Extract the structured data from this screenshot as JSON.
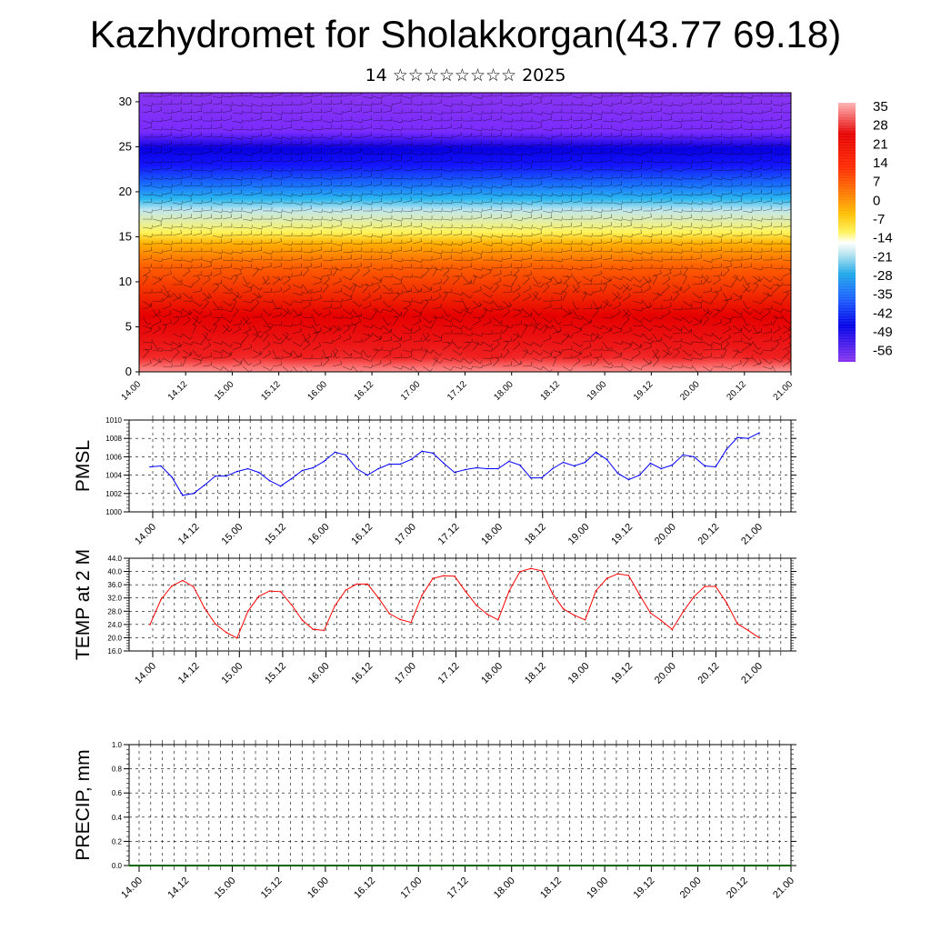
{
  "title": "Kazhydromet for Sholakkorgan(43.77 69.18)",
  "subtitle": "14 ☆☆☆☆☆☆☆☆ 2025",
  "colorbar": {
    "labels": [
      "35",
      "28",
      "21",
      "14",
      "7",
      "0",
      "-7",
      "-14",
      "-21",
      "-28",
      "-35",
      "-42",
      "-49",
      "-56"
    ]
  },
  "chart_data": [
    {
      "type": "heatmap",
      "title": "",
      "xlabel": "",
      "ylabel": "",
      "x_ticks": [
        "14.00",
        "14.12",
        "15.00",
        "15.12",
        "16.00",
        "16.12",
        "17.00",
        "17.12",
        "18.00",
        "18.12",
        "19.00",
        "19.12",
        "20.00",
        "20.12",
        "21.00"
      ],
      "y_ticks": [
        "0",
        "5",
        "10",
        "15",
        "20",
        "25",
        "30"
      ],
      "ylim": [
        0,
        31
      ],
      "colorbar_range": [
        -56,
        35
      ],
      "overlay": "wind barbs"
    },
    {
      "type": "line",
      "ylabel": "PMSL",
      "ylim": [
        1000,
        1010
      ],
      "y_ticks": [
        "1000",
        "1002",
        "1004",
        "1006",
        "1008",
        "1010"
      ],
      "x_ticks": [
        "14.00",
        "14.12",
        "15.00",
        "15.12",
        "16.00",
        "16.12",
        "17.00",
        "17.12",
        "18.00",
        "18.12",
        "19.00",
        "19.12",
        "20.00",
        "20.12",
        "21.00"
      ],
      "grid": true,
      "color": "#0000ff",
      "values": [
        1004.9,
        1005.0,
        1003.8,
        1001.8,
        1002.0,
        1002.9,
        1003.9,
        1003.9,
        1004.4,
        1004.7,
        1004.3,
        1003.4,
        1002.8,
        1003.6,
        1004.5,
        1004.8,
        1005.5,
        1006.5,
        1006.2,
        1004.7,
        1004.0,
        1004.7,
        1005.2,
        1005.2,
        1005.7,
        1006.6,
        1006.4,
        1005.3,
        1004.3,
        1004.6,
        1004.8,
        1004.7,
        1004.7,
        1005.5,
        1005.1,
        1003.7,
        1003.7,
        1004.7,
        1005.4,
        1005.0,
        1005.4,
        1006.5,
        1005.7,
        1004.2,
        1003.5,
        1004.0,
        1005.3,
        1004.7,
        1005.1,
        1006.2,
        1006.0,
        1005.0,
        1004.9,
        1006.8,
        1008.1,
        1008.0,
        1008.6
      ]
    },
    {
      "type": "line",
      "ylabel": "TEMP at 2 M",
      "ylim": [
        16,
        44
      ],
      "y_ticks": [
        "16.0",
        "20.0",
        "24.0",
        "28.0",
        "32.0",
        "36.0",
        "40.0",
        "44.0"
      ],
      "x_ticks": [
        "14.00",
        "14.12",
        "15.00",
        "15.12",
        "16.00",
        "16.12",
        "17.00",
        "17.12",
        "18.00",
        "18.12",
        "19.00",
        "19.12",
        "20.00",
        "20.12",
        "21.00"
      ],
      "grid": true,
      "color": "#ff0000",
      "values": [
        24.0,
        31.5,
        35.6,
        37.3,
        35.4,
        29.0,
        24.2,
        21.6,
        19.9,
        28.0,
        32.5,
        34.1,
        33.9,
        30.0,
        25.3,
        22.5,
        22.2,
        29.7,
        34.4,
        36.2,
        36.2,
        32.0,
        27.3,
        25.5,
        24.6,
        32.8,
        37.9,
        38.7,
        38.6,
        34.0,
        29.8,
        27.1,
        25.4,
        34.0,
        39.9,
        40.9,
        40.2,
        33.3,
        28.7,
        26.8,
        25.4,
        34.2,
        37.9,
        39.3,
        38.8,
        33.0,
        27.5,
        25.2,
        22.5,
        27.8,
        32.4,
        35.5,
        35.5,
        30.6,
        24.2,
        22.2,
        20.0
      ]
    },
    {
      "type": "line",
      "ylabel": "PRECIP, mm",
      "ylim": [
        0,
        1
      ],
      "y_ticks": [
        "0.0",
        "0.2",
        "0.4",
        "0.6",
        "0.8",
        "1.0"
      ],
      "x_ticks": [
        "14.00",
        "14.12",
        "15.00",
        "15.12",
        "16.00",
        "16.12",
        "17.00",
        "17.12",
        "18.00",
        "18.12",
        "19.00",
        "19.12",
        "20.00",
        "20.12",
        "21.00"
      ],
      "grid": true,
      "color": "#006400",
      "values": [
        0,
        0,
        0,
        0,
        0,
        0,
        0,
        0,
        0,
        0,
        0,
        0,
        0,
        0,
        0,
        0,
        0,
        0,
        0,
        0,
        0,
        0,
        0,
        0,
        0,
        0,
        0,
        0,
        0,
        0,
        0,
        0,
        0,
        0,
        0,
        0,
        0,
        0,
        0,
        0,
        0,
        0,
        0,
        0,
        0,
        0,
        0,
        0,
        0,
        0,
        0,
        0,
        0,
        0,
        0,
        0,
        0
      ]
    }
  ]
}
